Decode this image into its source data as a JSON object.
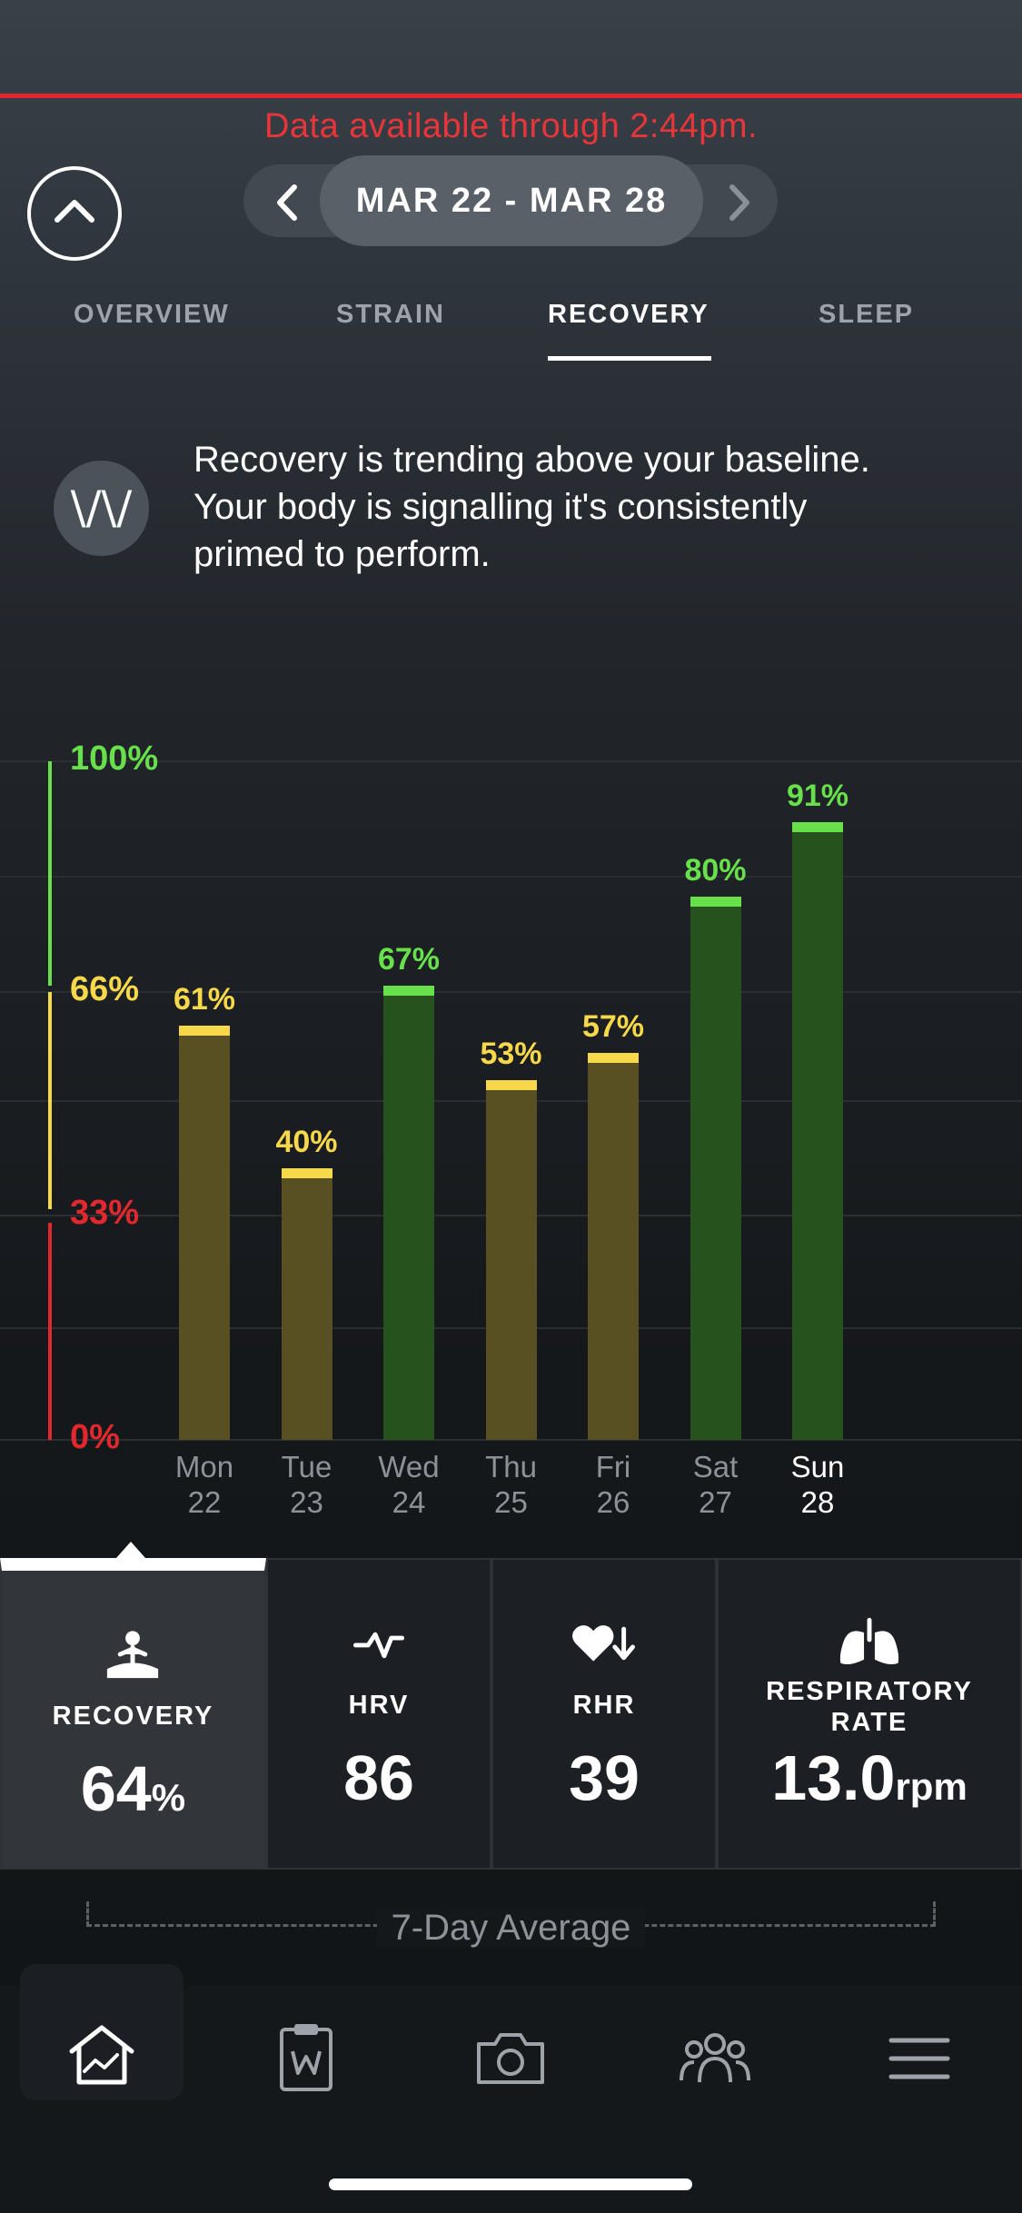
{
  "banner": {
    "text": "Data available through 2:44pm."
  },
  "date_nav": {
    "range": "MAR 22 - MAR 28"
  },
  "tabs": [
    {
      "label": "OVERVIEW",
      "active": false
    },
    {
      "label": "STRAIN",
      "active": false
    },
    {
      "label": "RECOVERY",
      "active": true
    },
    {
      "label": "SLEEP",
      "active": false
    }
  ],
  "insight": {
    "icon": "whoop-logo-icon",
    "text": "Recovery is trending above your baseline. Your body is signalling it's consistently primed to perform."
  },
  "colors": {
    "green": "#67e04b",
    "yellow": "#f7d84a",
    "red": "#e0282e",
    "green_bar": "#25521d",
    "yellow_bar": "#585022"
  },
  "chart_data": {
    "type": "bar",
    "categories": [
      "Mon 22",
      "Tue 23",
      "Wed 24",
      "Thu 25",
      "Fri 26",
      "Sat 27",
      "Sun 28"
    ],
    "days": [
      {
        "day": "Mon",
        "date": "22"
      },
      {
        "day": "Tue",
        "date": "23"
      },
      {
        "day": "Wed",
        "date": "24"
      },
      {
        "day": "Thu",
        "date": "25"
      },
      {
        "day": "Fri",
        "date": "26"
      },
      {
        "day": "Sat",
        "date": "27"
      },
      {
        "day": "Sun",
        "date": "28"
      }
    ],
    "values": [
      61,
      40,
      67,
      53,
      57,
      80,
      91
    ],
    "value_labels": [
      "61%",
      "40%",
      "67%",
      "53%",
      "57%",
      "80%",
      "91%"
    ],
    "ylim": [
      0,
      100
    ],
    "yticks": [
      {
        "value": 100,
        "label": "100%",
        "zone": "green"
      },
      {
        "value": 66,
        "label": "66%",
        "zone": "yellow"
      },
      {
        "value": 33,
        "label": "33%",
        "zone": "red"
      },
      {
        "value": 0,
        "label": "0%",
        "zone": "red"
      }
    ],
    "highlighted_category": "Sun 28"
  },
  "metrics": [
    {
      "id": "recovery",
      "icon": "meditation-icon",
      "label": "RECOVERY",
      "value": "64",
      "unit": "%",
      "active": true
    },
    {
      "id": "hrv",
      "icon": "hrv-pulse-icon",
      "label": "HRV",
      "value": "86",
      "unit": "",
      "active": false
    },
    {
      "id": "rhr",
      "icon": "heart-down-icon",
      "label": "RHR",
      "value": "39",
      "unit": "",
      "active": false
    },
    {
      "id": "resp",
      "icon": "lungs-icon",
      "label": "RESPIRATORY RATE",
      "value": "13.0",
      "unit": "rpm",
      "active": false
    }
  ],
  "average": {
    "label": "7-Day Average"
  },
  "navbar": [
    {
      "icon": "home-chart-icon",
      "active": true
    },
    {
      "icon": "clipboard-icon",
      "active": false
    },
    {
      "icon": "camera-icon",
      "active": false
    },
    {
      "icon": "community-icon",
      "active": false
    },
    {
      "icon": "menu-icon",
      "active": false
    }
  ]
}
